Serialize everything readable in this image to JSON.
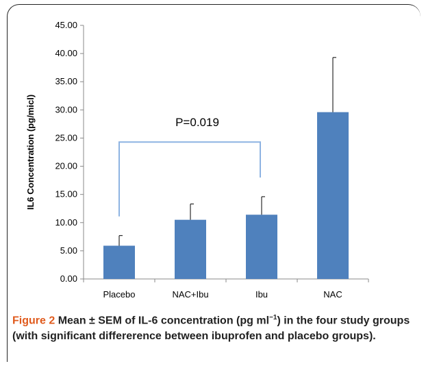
{
  "chart_data": {
    "type": "bar",
    "categories": [
      "Placebo",
      "NAC+Ibu",
      "Ibu",
      "NAC"
    ],
    "values": [
      5.9,
      10.5,
      11.4,
      29.6
    ],
    "error": [
      1.8,
      2.8,
      3.2,
      9.7
    ],
    "ylabel": "IL6 Concentration (pg/micl)",
    "ylim": [
      0,
      45
    ],
    "yticks": [
      "0.00",
      "5.00",
      "10.00",
      "15.00",
      "20.00",
      "25.00",
      "30.00",
      "35.00",
      "40.00",
      "45.00"
    ],
    "bar_color": "#4f81bd",
    "grid": false,
    "annotation": {
      "text": "P=0.019",
      "from_category": "Placebo",
      "to_category": "Ibu",
      "bracket_value": 24.3,
      "bracket_color": "#8db3e2"
    }
  },
  "caption": {
    "label": "Figure 2",
    "text_pre": "Mean ± SEM of IL-6 concentration (pg ml",
    "superscript": "−1",
    "text_post": ") in the four study groups (with significant differerence between ibuprofen and placebo groups).",
    "label_color": "#e05a1c"
  }
}
